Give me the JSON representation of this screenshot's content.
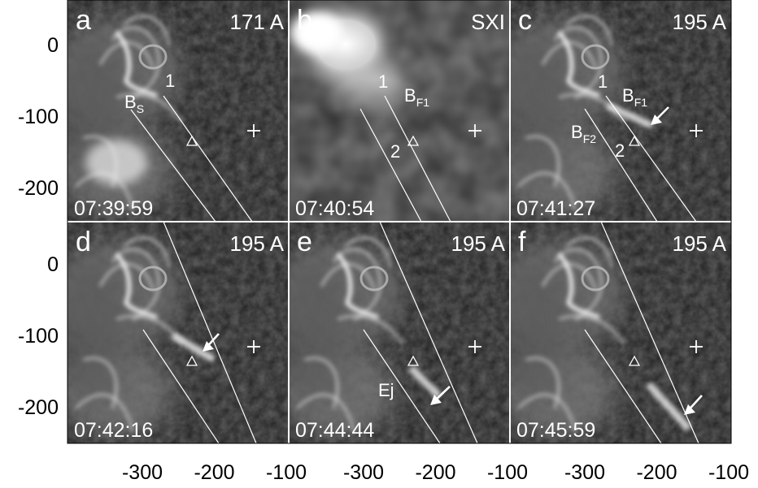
{
  "figure": {
    "x_ticks": [
      "-300",
      "-200",
      "-100"
    ],
    "y_ticks_top": [
      "0",
      "-100",
      "-200"
    ],
    "y_ticks_bottom": [
      "0",
      "-100",
      "-200"
    ],
    "panels": [
      {
        "letter": "a",
        "instrument": "171 A",
        "time": "07:39:59",
        "style": "euv-early",
        "labels": [
          {
            "text": "1",
            "sub": ""
          },
          {
            "text": "B",
            "sub": "S"
          }
        ]
      },
      {
        "letter": "b",
        "instrument": "SXI",
        "time": "07:40:54",
        "style": "sxr",
        "labels": [
          {
            "text": "1",
            "sub": ""
          },
          {
            "text": "B",
            "sub": "F1"
          },
          {
            "text": "2",
            "sub": ""
          }
        ]
      },
      {
        "letter": "c",
        "instrument": "195 A",
        "time": "07:41:27",
        "style": "euv",
        "labels": [
          {
            "text": "1",
            "sub": ""
          },
          {
            "text": "B",
            "sub": "F1"
          },
          {
            "text": "B",
            "sub": "F2"
          },
          {
            "text": "2",
            "sub": ""
          }
        ]
      },
      {
        "letter": "d",
        "instrument": "195 A",
        "time": "07:42:16",
        "style": "euv",
        "labels": []
      },
      {
        "letter": "e",
        "instrument": "195 A",
        "time": "07:44:44",
        "style": "euv",
        "labels": [
          {
            "text": "Ej",
            "sub": ""
          }
        ]
      },
      {
        "letter": "f",
        "instrument": "195 A",
        "time": "07:45:59",
        "style": "euv",
        "labels": []
      }
    ]
  }
}
